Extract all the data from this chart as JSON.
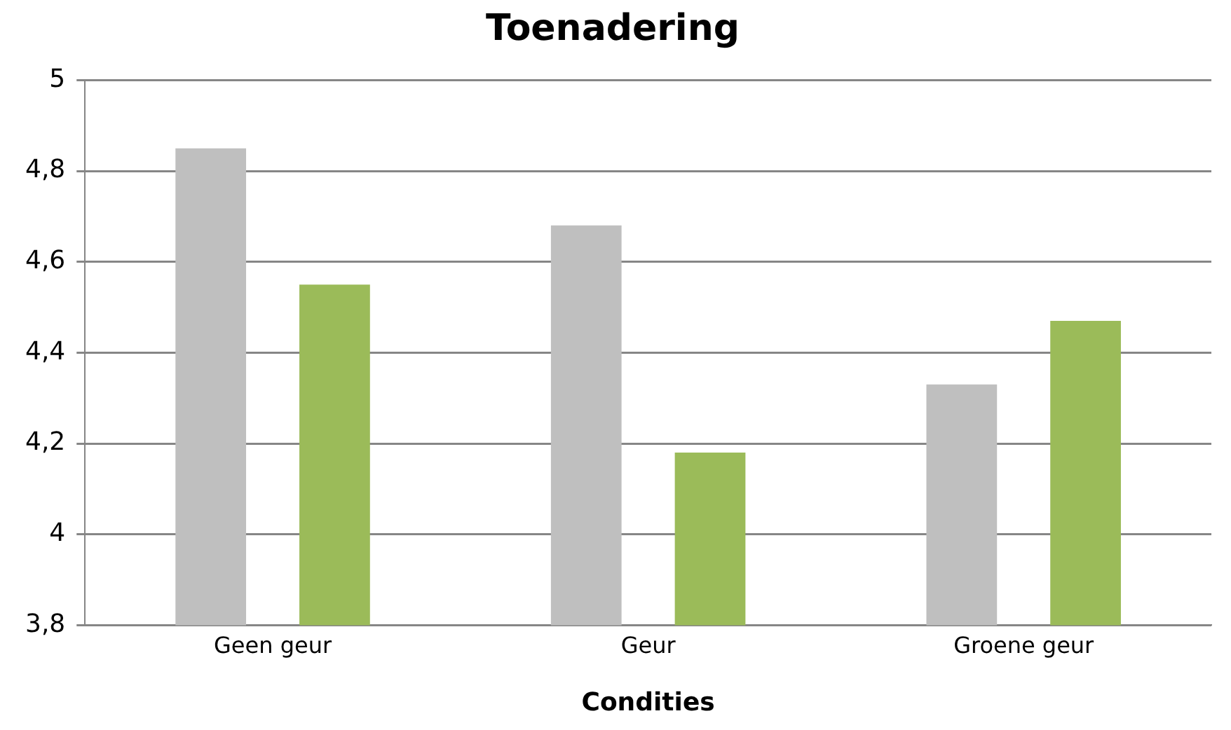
{
  "chart_data": {
    "type": "bar",
    "title": "Toenadering",
    "xlabel": "Condities",
    "categories": [
      "Geen geur",
      "Geur",
      "Groene geur"
    ],
    "series": [
      {
        "color": "#bfbfbf",
        "values": [
          4.85,
          4.68,
          4.33
        ]
      },
      {
        "color": "#9bbb59",
        "values": [
          4.55,
          4.18,
          4.47
        ]
      }
    ],
    "ylim": [
      3.8,
      5
    ],
    "yticks": [
      {
        "value": 3.8,
        "label": "3,8"
      },
      {
        "value": 4,
        "label": "4"
      },
      {
        "value": 4.2,
        "label": "4,2"
      },
      {
        "value": 4.4,
        "label": "4,4"
      },
      {
        "value": 4.6,
        "label": "4,6"
      },
      {
        "value": 4.8,
        "label": "4,8"
      },
      {
        "value": 5,
        "label": "5"
      }
    ],
    "grid": "y",
    "legend": false
  }
}
